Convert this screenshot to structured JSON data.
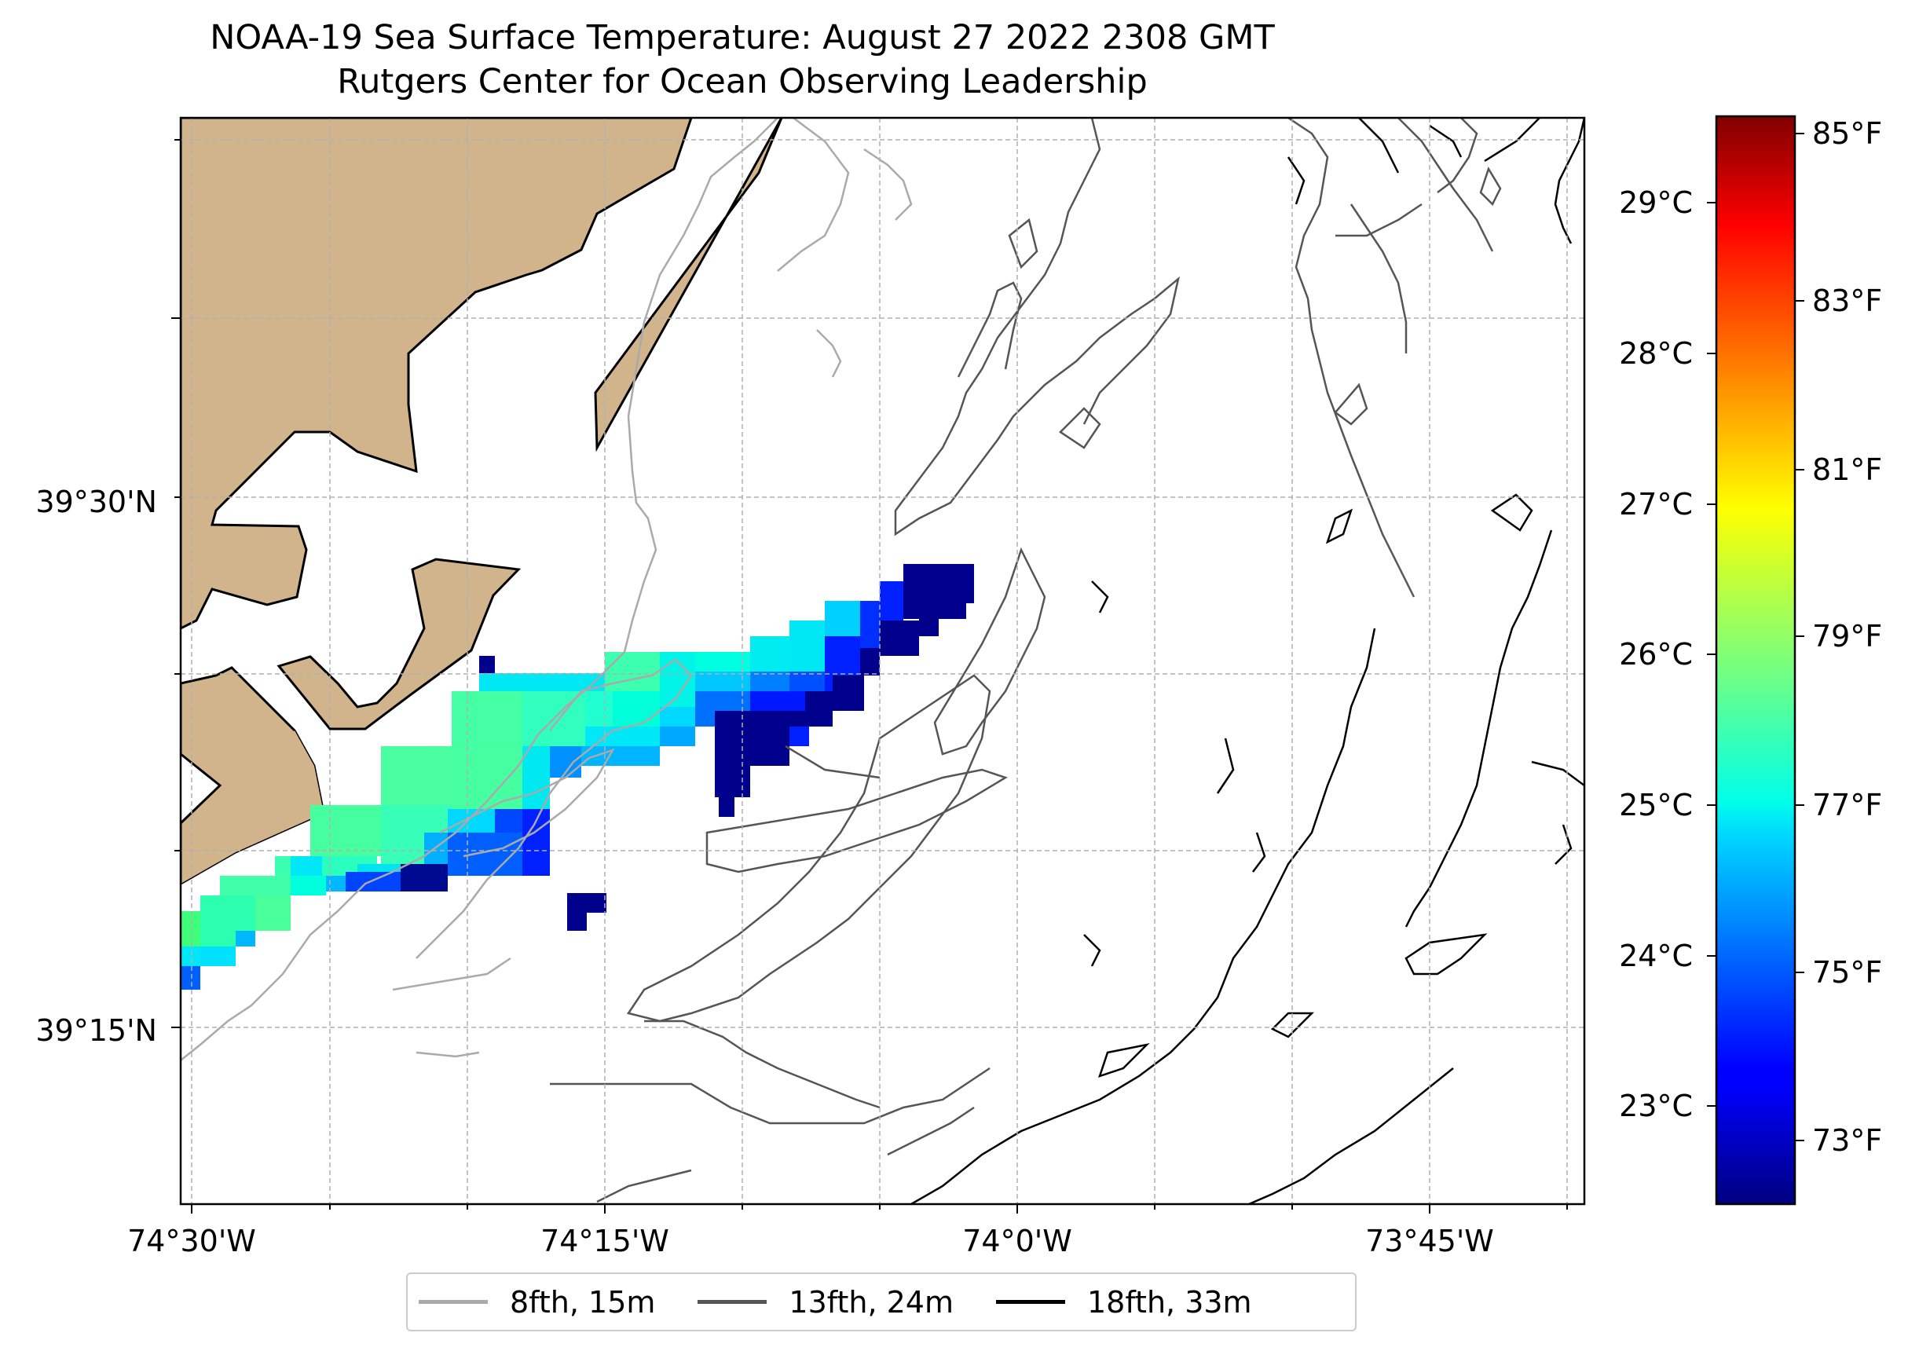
{
  "title": {
    "line1": "NOAA-19 Sea Surface Temperature: August 27 2022 2308 GMT",
    "line2": "Rutgers Center for Ocean Observing Leadership"
  },
  "colors": {
    "land": "#d2b48c",
    "coast": "#000000",
    "contour_8fth": "#aaaaaa",
    "contour_13fth": "#555555",
    "contour_18fth": "#000000",
    "grid": "#b0b0b0"
  },
  "axes": {
    "x_ticks": [
      "74°30'W",
      "74°15'W",
      "74°0'W",
      "73°45'W"
    ],
    "y_ticks": [
      "39°30'N",
      "39°15'N"
    ]
  },
  "colorbar": {
    "colormap": "jet",
    "celsius_ticks": [
      "29°C",
      "28°C",
      "27°C",
      "26°C",
      "25°C",
      "24°C",
      "23°C"
    ],
    "fahrenheit_ticks": [
      "85°F",
      "83°F",
      "81°F",
      "79°F",
      "77°F",
      "75°F",
      "73°F"
    ]
  },
  "legend": {
    "items": [
      {
        "label": "8fth, 15m",
        "color": "#aaaaaa"
      },
      {
        "label": "13fth, 24m",
        "color": "#555555"
      },
      {
        "label": "18fth, 33m",
        "color": "#000000"
      }
    ]
  }
}
